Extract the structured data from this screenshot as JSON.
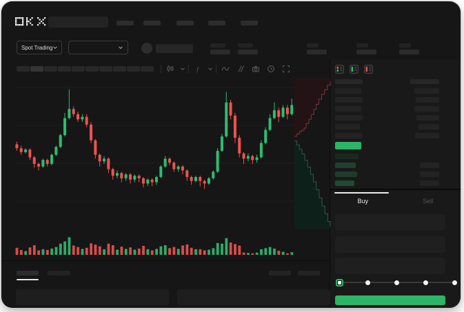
{
  "meta": {
    "app": "OKX trading terminal (skeleton state)"
  },
  "colors": {
    "up": "#2ebd70",
    "down": "#f0524f",
    "accent_green": "#2cb566",
    "bg": "#161616",
    "panel": "#191919",
    "block": "#242424",
    "block_light": "#2d2d2d",
    "text": "#e6e6e6",
    "dim_icon": "#575757",
    "depth_ask_fill": "#241316",
    "depth_ask_line": "#74383d",
    "depth_bid_fill": "#0d211a",
    "depth_bid_line": "#2e574c"
  },
  "topnav": {
    "logo_text": "OKX",
    "nav_items": 5
  },
  "market_header": {
    "market_selector_label": "Spot Trading",
    "pair_selector_label": "",
    "stat_pairs": 5
  },
  "chart_toolbar": {
    "timeframe_buttons": 10,
    "icons": [
      "candles-icon",
      "chevron-down-icon",
      "indicator-icon",
      "chevron-down-icon",
      "line-style-icon",
      "compare-icon",
      "camera-icon",
      "history-icon",
      "fullscreen-icon"
    ]
  },
  "chart_data": {
    "type": "candlestick",
    "title": "",
    "note": "no axis tick labels visible in skeleton UI; prices on relative 0-100 scale",
    "price_scale": [
      0,
      100
    ],
    "candles": [
      [
        55,
        52,
        50,
        57
      ],
      [
        52,
        49,
        47,
        54
      ],
      [
        49,
        51,
        48,
        52
      ],
      [
        51,
        45,
        43,
        52
      ],
      [
        45,
        40,
        37,
        46
      ],
      [
        40,
        38,
        35,
        41
      ],
      [
        38,
        43,
        37,
        44
      ],
      [
        43,
        40,
        38,
        44
      ],
      [
        40,
        47,
        39,
        48
      ],
      [
        47,
        53,
        46,
        54
      ],
      [
        53,
        62,
        52,
        63
      ],
      [
        62,
        75,
        61,
        79
      ],
      [
        75,
        82,
        74,
        97
      ],
      [
        82,
        78,
        76,
        84
      ],
      [
        78,
        74,
        72,
        80
      ],
      [
        74,
        76,
        72,
        78
      ],
      [
        76,
        70,
        68,
        78
      ],
      [
        70,
        58,
        56,
        72
      ],
      [
        58,
        47,
        44,
        59
      ],
      [
        47,
        42,
        38,
        48
      ],
      [
        42,
        44,
        40,
        46
      ],
      [
        44,
        36,
        33,
        45
      ],
      [
        36,
        31,
        28,
        37
      ],
      [
        31,
        33,
        29,
        35
      ],
      [
        33,
        29,
        26,
        34
      ],
      [
        29,
        32,
        27,
        33
      ],
      [
        32,
        28,
        25,
        33
      ],
      [
        28,
        31,
        26,
        32
      ],
      [
        31,
        29,
        26,
        32
      ],
      [
        29,
        25,
        22,
        30
      ],
      [
        25,
        28,
        23,
        29
      ],
      [
        28,
        26,
        23,
        29
      ],
      [
        26,
        30,
        24,
        31
      ],
      [
        30,
        38,
        29,
        39
      ],
      [
        38,
        44,
        37,
        46
      ],
      [
        44,
        41,
        39,
        45
      ],
      [
        41,
        36,
        34,
        42
      ],
      [
        36,
        38,
        34,
        39
      ],
      [
        38,
        35,
        32,
        39
      ],
      [
        35,
        30,
        27,
        36
      ],
      [
        30,
        27,
        24,
        31
      ],
      [
        27,
        30,
        26,
        31
      ],
      [
        30,
        27,
        23,
        31
      ],
      [
        27,
        25,
        21,
        28
      ],
      [
        25,
        29,
        24,
        30
      ],
      [
        29,
        34,
        28,
        35
      ],
      [
        34,
        50,
        33,
        52
      ],
      [
        50,
        61,
        49,
        63
      ],
      [
        61,
        87,
        60,
        95
      ],
      [
        87,
        77,
        74,
        89
      ],
      [
        77,
        60,
        56,
        79
      ],
      [
        60,
        48,
        45,
        62
      ],
      [
        48,
        44,
        40,
        49
      ],
      [
        44,
        46,
        42,
        48
      ],
      [
        46,
        43,
        40,
        47
      ],
      [
        43,
        45,
        41,
        47
      ],
      [
        45,
        56,
        44,
        58
      ],
      [
        56,
        66,
        55,
        68
      ],
      [
        66,
        75,
        65,
        78
      ],
      [
        75,
        81,
        74,
        87
      ],
      [
        81,
        76,
        72,
        83
      ],
      [
        76,
        83,
        75,
        85
      ],
      [
        83,
        78,
        74,
        85
      ],
      [
        78,
        85,
        77,
        90
      ]
    ],
    "volumes": [
      38,
      26,
      20,
      40,
      52,
      24,
      30,
      26,
      34,
      42,
      60,
      72,
      95,
      50,
      42,
      32,
      38,
      62,
      55,
      46,
      30,
      60,
      52,
      28,
      44,
      32,
      40,
      28,
      34,
      48,
      30,
      24,
      32,
      46,
      52,
      36,
      42,
      32,
      50,
      56,
      38,
      30,
      30,
      24,
      28,
      36,
      64,
      60,
      90,
      66,
      58,
      50,
      12,
      10,
      8,
      12,
      30,
      36,
      42,
      34,
      22,
      16,
      8,
      14
    ],
    "depth": {
      "asks": [
        [
          0,
          0.385
        ],
        [
          0.07,
          0.37
        ],
        [
          0.14,
          0.355
        ],
        [
          0.2,
          0.345
        ],
        [
          0.27,
          0.33
        ],
        [
          0.33,
          0.3
        ],
        [
          0.4,
          0.272
        ],
        [
          0.47,
          0.24
        ],
        [
          0.54,
          0.205
        ],
        [
          0.61,
          0.172
        ],
        [
          0.68,
          0.138
        ],
        [
          0.76,
          0.105
        ],
        [
          0.84,
          0.075
        ],
        [
          0.92,
          0.045
        ],
        [
          1,
          0.02
        ]
      ],
      "bids": [
        [
          0,
          0.415
        ],
        [
          0.07,
          0.443
        ],
        [
          0.14,
          0.472
        ],
        [
          0.21,
          0.503
        ],
        [
          0.29,
          0.545
        ],
        [
          0.37,
          0.59
        ],
        [
          0.45,
          0.638
        ],
        [
          0.53,
          0.688
        ],
        [
          0.61,
          0.74
        ],
        [
          0.69,
          0.795
        ],
        [
          0.77,
          0.85
        ],
        [
          0.85,
          0.9
        ],
        [
          0.93,
          0.952
        ],
        [
          1,
          0.985
        ]
      ]
    }
  },
  "orderbook": {
    "view_icons": [
      "book-all-icon",
      "book-bids-icon",
      "book-asks-icon"
    ],
    "asks": [
      {
        "p": 38,
        "a": 36
      },
      {
        "p": 40,
        "a": 34
      },
      {
        "p": 38,
        "a": 36
      },
      {
        "p": 40,
        "a": 33
      },
      {
        "p": 36,
        "a": 30
      },
      {
        "p": 40,
        "a": 35
      }
    ],
    "last_price_block": {
      "w": 38,
      "color": "#2cb566"
    },
    "bids": [
      {
        "p": 34,
        "a": 0,
        "color": "#19291f"
      },
      {
        "p": 30,
        "a": 28,
        "color": "#1f4230"
      },
      {
        "p": 32,
        "a": 28,
        "color": "#1d3d2c"
      },
      {
        "p": 28,
        "a": 28,
        "color": "#224a33"
      }
    ]
  },
  "trade_panel": {
    "tabs": [
      {
        "label": "Buy",
        "active": true
      },
      {
        "label": "Sell",
        "active": false
      }
    ],
    "field_count": 3,
    "slider": {
      "stops": [
        0,
        25,
        50,
        75,
        100
      ],
      "active_stop": 0
    },
    "submit_label": ""
  },
  "bottom_panel": {
    "tabs": 2,
    "active_tab": 0,
    "right_blocks": 2,
    "content_blocks": 2
  }
}
